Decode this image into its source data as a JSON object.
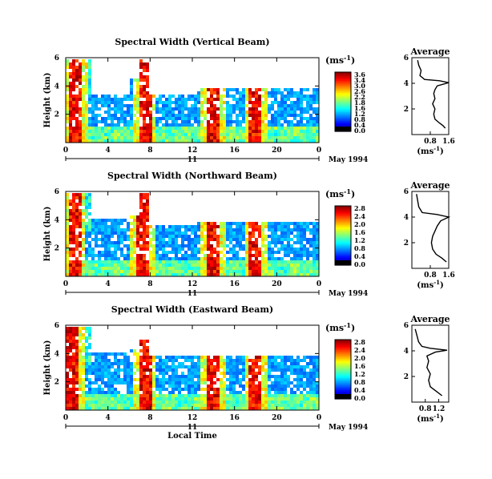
{
  "chart_data": [
    {
      "type": "heatmap",
      "title": "Spectral Width (Vertical Beam)",
      "ylabel": "Height (km)",
      "yticks": [
        "6",
        "4",
        "2"
      ],
      "xticks": [
        "0",
        "4",
        "8",
        "12",
        "16",
        "20",
        "0"
      ],
      "xlim": [
        0,
        24
      ],
      "ylim": [
        0,
        6
      ],
      "date_marker": "11",
      "date_label": "May 1994",
      "colorbar": {
        "unit": "(ms",
        "exponent": "-1",
        "unit_close": ")",
        "ticks": [
          "3.6",
          "3.4",
          "3.0",
          "2.6",
          "2.2",
          "1.8",
          "1.6",
          "1.2",
          "0.8",
          "0.4",
          "0.0"
        ]
      },
      "features": {
        "high_cols": [
          1,
          7.5,
          14,
          18
        ],
        "top_extent": [
          [
            0,
            5.8
          ],
          [
            2.5,
            3.3
          ],
          [
            6,
            4.5
          ],
          [
            7,
            5.8
          ],
          [
            8,
            3.3
          ],
          [
            12.5,
            3.8
          ],
          [
            24,
            3.8
          ]
        ]
      },
      "average": {
        "title": "Average",
        "yticks": [
          "6",
          "4",
          "2"
        ],
        "xticks": [
          "0.8",
          "1.6"
        ],
        "xlabel": "(ms",
        "xlabel_exp": "-1",
        "xlabel_close": ")",
        "xlim": [
          0,
          1.6
        ],
        "ylim": [
          0,
          6
        ],
        "profile": [
          [
            1.45,
            0.5
          ],
          [
            1.35,
            0.7
          ],
          [
            1.2,
            0.9
          ],
          [
            1.0,
            1.2
          ],
          [
            0.95,
            1.6
          ],
          [
            1.0,
            2.0
          ],
          [
            0.9,
            2.4
          ],
          [
            1.0,
            2.8
          ],
          [
            0.95,
            3.2
          ],
          [
            1.0,
            3.5
          ],
          [
            1.1,
            3.8
          ],
          [
            1.6,
            4.05
          ],
          [
            1.2,
            4.2
          ],
          [
            0.55,
            4.3
          ],
          [
            0.35,
            4.6
          ],
          [
            0.4,
            5.0
          ],
          [
            0.3,
            5.4
          ],
          [
            0.25,
            5.8
          ]
        ]
      }
    },
    {
      "type": "heatmap",
      "title": "Spectral Width (Northward Beam)",
      "ylabel": "Height (km)",
      "yticks": [
        "6",
        "4",
        "2"
      ],
      "xticks": [
        "0",
        "4",
        "8",
        "12",
        "16",
        "20",
        "0"
      ],
      "xlim": [
        0,
        24
      ],
      "ylim": [
        0,
        6
      ],
      "date_marker": "11",
      "date_label": "May 1994",
      "colorbar": {
        "unit": "(ms",
        "exponent": "-1",
        "unit_close": ")",
        "ticks": [
          "2.8",
          "2.4",
          "2.0",
          "1.6",
          "1.2",
          "0.8",
          "0.4",
          "0.0"
        ]
      },
      "features": {
        "high_cols": [
          0.8,
          7.3,
          14,
          18
        ],
        "top_extent": [
          [
            0,
            5.8
          ],
          [
            2.5,
            4.0
          ],
          [
            6,
            4.2
          ],
          [
            7,
            5.8
          ],
          [
            8,
            3.6
          ],
          [
            12.5,
            3.8
          ],
          [
            24,
            3.8
          ]
        ]
      },
      "average": {
        "title": "Average",
        "yticks": [
          "6",
          "4",
          "2"
        ],
        "xticks": [
          "0.8",
          "1.6"
        ],
        "xlabel": "(ms",
        "xlabel_exp": "-1",
        "xlabel_close": ")",
        "xlim": [
          0,
          1.6
        ],
        "ylim": [
          0,
          6
        ],
        "profile": [
          [
            1.5,
            0.5
          ],
          [
            1.3,
            0.8
          ],
          [
            1.05,
            1.1
          ],
          [
            0.9,
            1.5
          ],
          [
            0.85,
            2.0
          ],
          [
            0.9,
            2.5
          ],
          [
            1.0,
            2.9
          ],
          [
            1.1,
            3.3
          ],
          [
            1.25,
            3.7
          ],
          [
            1.6,
            4.0
          ],
          [
            1.1,
            4.2
          ],
          [
            0.45,
            4.35
          ],
          [
            0.3,
            4.8
          ],
          [
            0.25,
            5.3
          ],
          [
            0.2,
            5.8
          ]
        ]
      }
    },
    {
      "type": "heatmap",
      "title": "Spectral Width (Eastward Beam)",
      "ylabel": "Height (km)",
      "yticks": [
        "6",
        "4",
        "2"
      ],
      "xticks": [
        "0",
        "4",
        "8",
        "12",
        "16",
        "20",
        "0"
      ],
      "xlim": [
        0,
        24
      ],
      "ylim": [
        0,
        6
      ],
      "date_marker": "11",
      "date_label": "May 1994",
      "xlabel": "Local Time",
      "colorbar": {
        "unit": "(ms",
        "exponent": "-1",
        "unit_close": ")",
        "ticks": [
          "2.8",
          "2.4",
          "2.0",
          "1.6",
          "1.2",
          "0.8",
          "0.4",
          "0.0"
        ]
      },
      "features": {
        "high_cols": [
          0.6,
          7.5,
          14,
          18
        ],
        "top_extent": [
          [
            0,
            5.8
          ],
          [
            2.5,
            4.0
          ],
          [
            6,
            4.2
          ],
          [
            7,
            4.8
          ],
          [
            8,
            3.8
          ],
          [
            12.5,
            3.8
          ],
          [
            24,
            3.6
          ]
        ]
      },
      "average": {
        "title": "Average",
        "yticks": [
          "6",
          "4",
          "2"
        ],
        "xticks": [
          "0.8",
          "1.2"
        ],
        "xlabel": "(ms",
        "xlabel_exp": "-1",
        "xlabel_close": ")",
        "xlim": [
          0.4,
          1.5
        ],
        "ylim": [
          0,
          6
        ],
        "profile": [
          [
            1.3,
            0.5
          ],
          [
            1.15,
            0.8
          ],
          [
            0.95,
            1.2
          ],
          [
            0.9,
            1.7
          ],
          [
            0.95,
            2.2
          ],
          [
            0.85,
            2.7
          ],
          [
            0.9,
            3.2
          ],
          [
            0.85,
            3.6
          ],
          [
            1.1,
            3.9
          ],
          [
            1.45,
            4.05
          ],
          [
            0.95,
            4.2
          ],
          [
            0.7,
            4.35
          ],
          [
            0.6,
            4.7
          ],
          [
            0.55,
            5.2
          ],
          [
            0.5,
            5.7
          ]
        ]
      }
    }
  ]
}
